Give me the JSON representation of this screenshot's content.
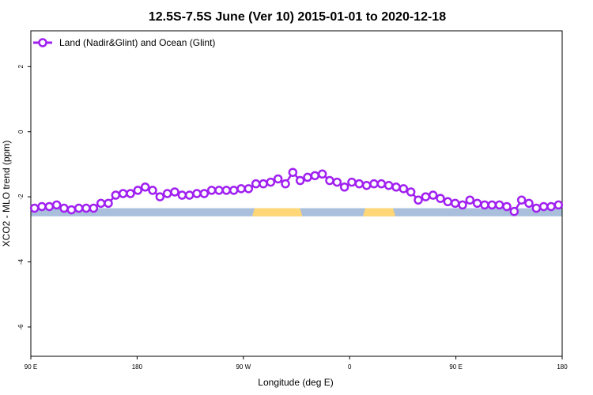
{
  "chart_data": {
    "type": "line",
    "title": "12.5S-7.5S June (Ver 10)   2015-01-01 to 2020-12-18",
    "xlabel": "Longitude (deg E)",
    "ylabel": "XCO2 - MLO trend (ppm)",
    "xlim": [
      90,
      450
    ],
    "ylim": [
      -6.9,
      3.1
    ],
    "x_ticks": [
      {
        "value": 90,
        "label": "90 E"
      },
      {
        "value": 162,
        "label": "180"
      },
      {
        "value": 234,
        "label": "90 W"
      },
      {
        "value": 306,
        "label": "0"
      },
      {
        "value": 378,
        "label": "90 E"
      },
      {
        "value": 450,
        "label": "180"
      }
    ],
    "y_ticks": [
      {
        "value": 2,
        "label": "2"
      },
      {
        "value": 0,
        "label": "0"
      },
      {
        "value": -2,
        "label": "-2"
      },
      {
        "value": -4,
        "label": "-4"
      },
      {
        "value": -6,
        "label": "-6"
      }
    ],
    "legend": {
      "placement": "top-left"
    },
    "series": [
      {
        "name": "Land (Nadir&Glint) and Ocean (Glint)",
        "color": "#a020f0",
        "x": [
          92.5,
          97.5,
          102.5,
          107.5,
          112.5,
          117.5,
          122.5,
          127.5,
          132.5,
          137.5,
          142.5,
          147.5,
          152.5,
          157.5,
          162.5,
          167.5,
          172.5,
          177.5,
          182.5,
          187.5,
          192.5,
          197.5,
          202.5,
          207.5,
          212.5,
          217.5,
          222.5,
          227.5,
          232.5,
          237.5,
          242.5,
          247.5,
          252.5,
          257.5,
          262.5,
          267.5,
          272.5,
          277.5,
          282.5,
          287.5,
          292.5,
          297.5,
          302.5,
          307.5,
          312.5,
          317.5,
          322.5,
          327.5,
          332.5,
          337.5,
          342.5,
          347.5,
          352.5,
          357.5,
          362.5,
          367.5,
          372.5,
          377.5,
          382.5,
          387.5,
          392.5,
          397.5,
          402.5,
          407.5,
          412.5,
          417.5,
          422.5,
          427.5,
          432.5,
          437.5,
          442.5,
          447.5
        ],
        "y": [
          -2.35,
          -2.3,
          -2.3,
          -2.25,
          -2.35,
          -2.4,
          -2.35,
          -2.35,
          -2.35,
          -2.2,
          -2.2,
          -1.95,
          -1.9,
          -1.9,
          -1.8,
          -1.7,
          -1.8,
          -2.0,
          -1.9,
          -1.85,
          -1.95,
          -1.95,
          -1.9,
          -1.9,
          -1.8,
          -1.8,
          -1.8,
          -1.8,
          -1.75,
          -1.75,
          -1.6,
          -1.6,
          -1.55,
          -1.45,
          -1.6,
          -1.25,
          -1.5,
          -1.4,
          -1.35,
          -1.3,
          -1.5,
          -1.55,
          -1.7,
          -1.55,
          -1.6,
          -1.65,
          -1.6,
          -1.6,
          -1.65,
          -1.7,
          -1.75,
          -1.85,
          -2.1,
          -2.0,
          -1.95,
          -2.05,
          -2.15,
          -2.2,
          -2.25,
          -2.1,
          -2.2,
          -2.25,
          -2.25,
          -2.25,
          -2.3,
          -2.45,
          -2.1,
          -2.2,
          -2.35,
          -2.3,
          -2.3,
          -2.25
        ]
      }
    ],
    "surface_bar": {
      "y_range": [
        -2.35,
        -2.6
      ],
      "ocean_color": "#a9bfdc",
      "land_color": "#ffd777",
      "land_segments": [
        [
          240,
          274
        ],
        [
          315,
          337
        ]
      ]
    }
  }
}
